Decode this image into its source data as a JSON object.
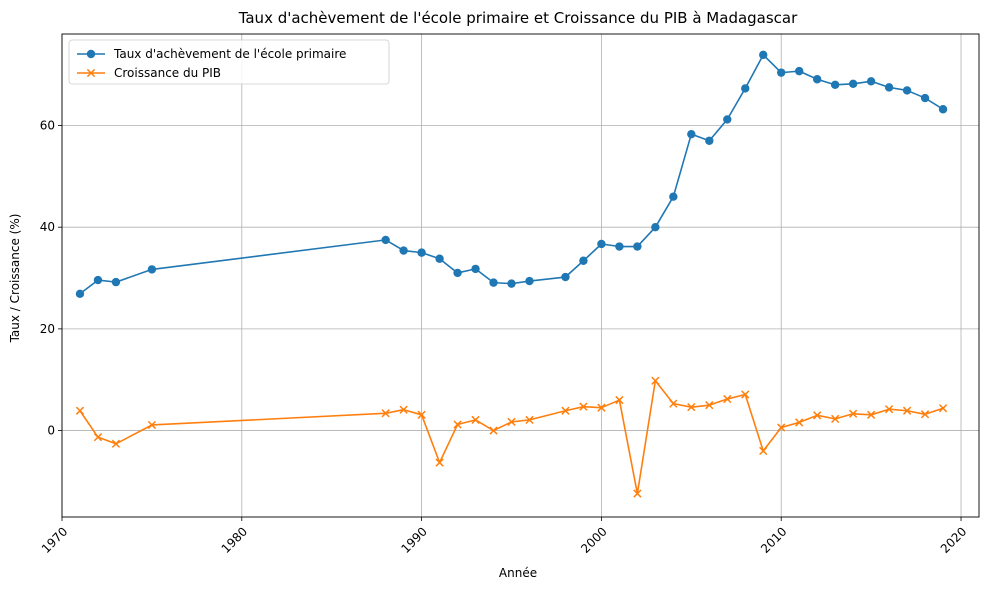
{
  "chart_data": {
    "type": "line",
    "title": "Taux d'achèvement de l'école primaire et Croissance du PIB à Madagascar",
    "xlabel": "Année",
    "ylabel": "Taux / Croissance (%)",
    "xlim": [
      1970,
      2021
    ],
    "ylim": [
      -17,
      78
    ],
    "xticks": [
      1970,
      1980,
      1990,
      2000,
      2010,
      2020
    ],
    "yticks": [
      0,
      20,
      40,
      60
    ],
    "x_tick_rotation": 45,
    "grid": true,
    "legend_position": "upper-left",
    "x": [
      1971,
      1972,
      1973,
      1975,
      1988,
      1989,
      1990,
      1991,
      1992,
      1993,
      1994,
      1995,
      1996,
      1998,
      1999,
      2000,
      2001,
      2002,
      2003,
      2004,
      2005,
      2006,
      2007,
      2008,
      2009,
      2010,
      2011,
      2012,
      2013,
      2014,
      2015,
      2016,
      2017,
      2018,
      2019
    ],
    "series": [
      {
        "name": "Taux d'achèvement de l'école primaire",
        "color": "#1f77b4",
        "marker": "circle",
        "values": [
          26.9,
          29.6,
          29.2,
          31.7,
          37.5,
          35.4,
          35.0,
          33.8,
          31.0,
          31.8,
          29.1,
          28.9,
          29.4,
          30.2,
          33.4,
          36.7,
          36.2,
          36.2,
          40.0,
          46.0,
          58.3,
          57.0,
          61.2,
          67.3,
          73.9,
          70.4,
          70.7,
          69.1,
          68.0,
          68.2,
          68.7,
          67.5,
          66.9,
          65.4,
          63.2
        ]
      },
      {
        "name": "Croissance du PIB",
        "color": "#ff7f0e",
        "marker": "x",
        "values": [
          3.9,
          -1.3,
          -2.6,
          1.1,
          3.4,
          4.1,
          3.1,
          -6.3,
          1.2,
          2.1,
          0.0,
          1.7,
          2.1,
          3.9,
          4.7,
          4.5,
          6.0,
          -12.4,
          9.8,
          5.3,
          4.6,
          5.0,
          6.2,
          7.1,
          -4.0,
          0.6,
          1.6,
          3.0,
          2.3,
          3.3,
          3.1,
          4.2,
          3.9,
          3.2,
          4.4
        ]
      }
    ]
  }
}
